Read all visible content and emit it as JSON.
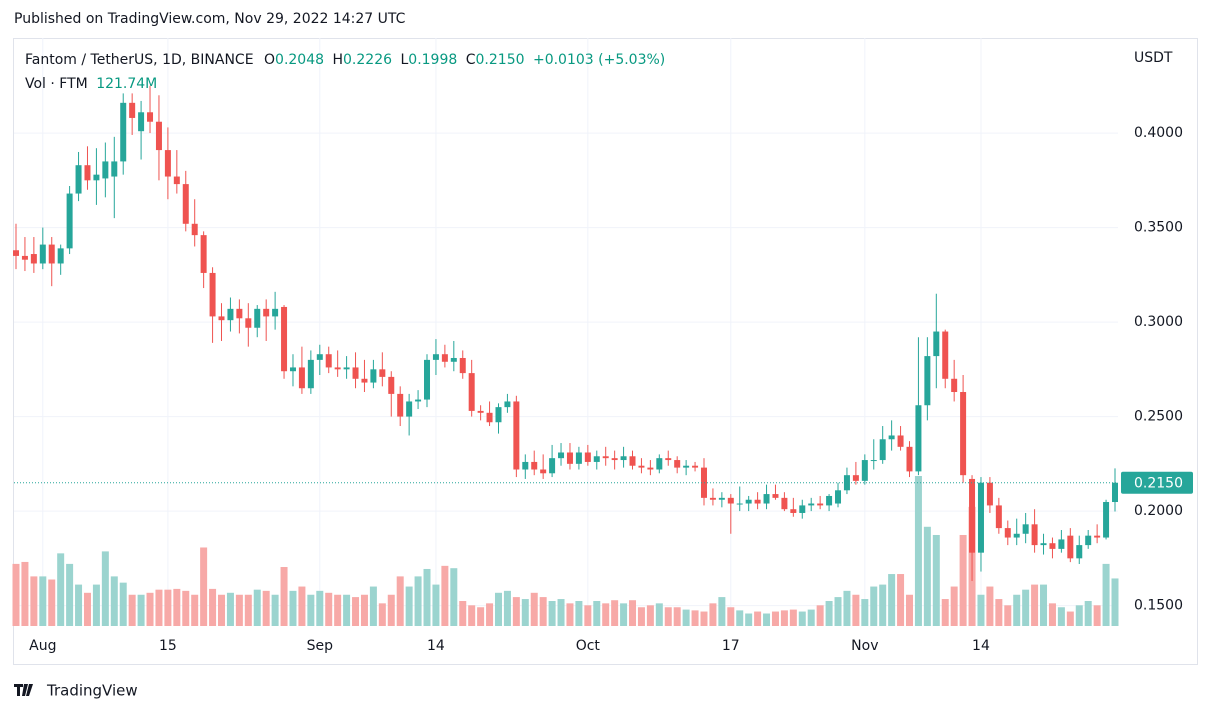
{
  "header": {
    "published": "Published on TradingView.com, Nov 29, 2022 14:27 UTC",
    "symbol": "Fantom / TetherUS, 1D, BINANCE",
    "o_label": "O",
    "o": "0.2048",
    "h_label": "H",
    "h": "0.2226",
    "l_label": "L",
    "l": "0.1998",
    "c_label": "C",
    "c": "0.2150",
    "change": "+0.0103 (+5.03%)",
    "volume_label": "Vol · FTM",
    "volume": "121.74M",
    "currency": "USDT",
    "brand": "TradingView"
  },
  "chart_data": {
    "type": "candlestick",
    "categories": [
      null,
      null,
      null,
      "Aug",
      null,
      null,
      null,
      null,
      null,
      null,
      null,
      null,
      null,
      null,
      null,
      null,
      null,
      "15",
      null,
      null,
      null,
      null,
      null,
      null,
      null,
      null,
      null,
      null,
      null,
      null,
      null,
      null,
      null,
      null,
      "Sep",
      null,
      null,
      null,
      null,
      null,
      null,
      null,
      null,
      null,
      null,
      null,
      null,
      "14",
      null,
      null,
      null,
      null,
      null,
      null,
      null,
      null,
      null,
      null,
      null,
      null,
      null,
      null,
      null,
      null,
      "Oct",
      null,
      null,
      null,
      null,
      null,
      null,
      null,
      null,
      null,
      null,
      null,
      null,
      null,
      null,
      null,
      "17",
      null,
      null,
      null,
      null,
      null,
      null,
      null,
      null,
      null,
      null,
      null,
      null,
      null,
      null,
      "Nov",
      null,
      null,
      null,
      null,
      null,
      null,
      null,
      null,
      null,
      null,
      null,
      null,
      "14",
      null,
      null,
      null,
      null,
      null,
      null,
      null,
      null,
      null,
      null,
      null,
      null,
      null,
      null,
      null
    ],
    "open": [
      0.338,
      0.335,
      0.336,
      0.331,
      0.341,
      0.331,
      0.339,
      0.368,
      0.383,
      0.375,
      0.376,
      0.377,
      0.385,
      0.416,
      0.401,
      0.411,
      0.406,
      0.391,
      0.377,
      0.373,
      0.352,
      0.346,
      0.326,
      0.303,
      0.301,
      0.307,
      0.302,
      0.297,
      0.307,
      0.303,
      0.308,
      0.274,
      0.276,
      0.265,
      0.28,
      0.283,
      0.276,
      0.275,
      0.276,
      0.27,
      0.268,
      0.275,
      0.271,
      0.262,
      0.25,
      0.258,
      0.259,
      0.28,
      0.283,
      0.279,
      0.281,
      0.273,
      0.253,
      0.252,
      0.247,
      0.255,
      0.258,
      0.222,
      0.226,
      0.222,
      0.22,
      0.228,
      0.231,
      0.225,
      0.231,
      0.226,
      0.229,
      0.228,
      0.227,
      0.229,
      0.224,
      0.223,
      0.222,
      0.228,
      0.227,
      0.223,
      0.224,
      0.223,
      0.207,
      0.206,
      0.207,
      0.204,
      0.204,
      0.206,
      0.204,
      0.209,
      0.207,
      0.201,
      0.199,
      0.203,
      0.204,
      0.203,
      0.204,
      0.211,
      0.219,
      0.216,
      0.227,
      0.227,
      0.238,
      0.24,
      0.234,
      0.221,
      0.256,
      0.282,
      0.295,
      0.27,
      0.263,
      0.217,
      0.178,
      0.215,
      0.203,
      0.191,
      0.186,
      0.188,
      0.193,
      0.182,
      0.183,
      0.18,
      0.187,
      0.175,
      0.182,
      0.187,
      0.186,
      0.2048
    ],
    "high": [
      0.352,
      0.345,
      0.345,
      0.35,
      0.345,
      0.341,
      0.372,
      0.39,
      0.393,
      0.392,
      0.395,
      0.398,
      0.421,
      0.421,
      0.417,
      0.425,
      0.42,
      0.403,
      0.391,
      0.38,
      0.365,
      0.348,
      0.329,
      0.31,
      0.313,
      0.312,
      0.31,
      0.309,
      0.312,
      0.316,
      0.309,
      0.283,
      0.287,
      0.285,
      0.288,
      0.287,
      0.285,
      0.282,
      0.284,
      0.28,
      0.28,
      0.284,
      0.274,
      0.266,
      0.262,
      0.264,
      0.283,
      0.291,
      0.288,
      0.29,
      0.285,
      0.28,
      0.256,
      0.258,
      0.257,
      0.262,
      0.261,
      0.23,
      0.232,
      0.23,
      0.235,
      0.236,
      0.236,
      0.234,
      0.235,
      0.232,
      0.234,
      0.232,
      0.234,
      0.232,
      0.228,
      0.227,
      0.23,
      0.232,
      0.229,
      0.227,
      0.226,
      0.228,
      0.212,
      0.21,
      0.209,
      0.213,
      0.208,
      0.21,
      0.214,
      0.214,
      0.21,
      0.207,
      0.206,
      0.207,
      0.208,
      0.209,
      0.215,
      0.223,
      0.226,
      0.23,
      0.238,
      0.245,
      0.248,
      0.245,
      0.237,
      0.292,
      0.292,
      0.315,
      0.296,
      0.28,
      0.272,
      0.219,
      0.218,
      0.218,
      0.207,
      0.195,
      0.196,
      0.199,
      0.201,
      0.188,
      0.186,
      0.19,
      0.191,
      0.187,
      0.19,
      0.193,
      0.206,
      0.2226
    ],
    "low": [
      0.328,
      0.327,
      0.326,
      0.328,
      0.319,
      0.325,
      0.336,
      0.364,
      0.37,
      0.362,
      0.366,
      0.355,
      0.378,
      0.399,
      0.386,
      0.4,
      0.375,
      0.365,
      0.368,
      0.348,
      0.34,
      0.318,
      0.289,
      0.29,
      0.295,
      0.294,
      0.287,
      0.292,
      0.29,
      0.296,
      0.27,
      0.266,
      0.262,
      0.262,
      0.272,
      0.273,
      0.271,
      0.27,
      0.265,
      0.263,
      0.265,
      0.266,
      0.25,
      0.245,
      0.24,
      0.254,
      0.255,
      0.272,
      0.276,
      0.274,
      0.27,
      0.25,
      0.248,
      0.245,
      0.241,
      0.252,
      0.218,
      0.217,
      0.219,
      0.217,
      0.218,
      0.224,
      0.222,
      0.222,
      0.224,
      0.222,
      0.224,
      0.222,
      0.223,
      0.222,
      0.22,
      0.219,
      0.22,
      0.224,
      0.22,
      0.219,
      0.221,
      0.203,
      0.203,
      0.202,
      0.188,
      0.2,
      0.2,
      0.201,
      0.201,
      0.206,
      0.2,
      0.197,
      0.196,
      0.2,
      0.201,
      0.2,
      0.202,
      0.209,
      0.214,
      0.214,
      0.222,
      0.225,
      0.232,
      0.232,
      0.218,
      0.219,
      0.248,
      0.265,
      0.265,
      0.258,
      0.215,
      0.163,
      0.168,
      0.199,
      0.188,
      0.182,
      0.182,
      0.183,
      0.178,
      0.177,
      0.175,
      0.178,
      0.173,
      0.172,
      0.18,
      0.183,
      0.185,
      0.1998
    ],
    "close": [
      0.335,
      0.333,
      0.331,
      0.341,
      0.331,
      0.339,
      0.368,
      0.383,
      0.375,
      0.378,
      0.385,
      0.385,
      0.416,
      0.408,
      0.411,
      0.406,
      0.391,
      0.377,
      0.373,
      0.352,
      0.346,
      0.326,
      0.303,
      0.301,
      0.307,
      0.302,
      0.297,
      0.307,
      0.303,
      0.307,
      0.274,
      0.276,
      0.265,
      0.28,
      0.283,
      0.276,
      0.275,
      0.276,
      0.27,
      0.268,
      0.275,
      0.271,
      0.262,
      0.25,
      0.258,
      0.259,
      0.28,
      0.283,
      0.279,
      0.281,
      0.273,
      0.253,
      0.252,
      0.247,
      0.255,
      0.258,
      0.222,
      0.226,
      0.222,
      0.22,
      0.228,
      0.231,
      0.225,
      0.231,
      0.226,
      0.229,
      0.228,
      0.227,
      0.229,
      0.224,
      0.223,
      0.222,
      0.228,
      0.227,
      0.223,
      0.224,
      0.223,
      0.207,
      0.206,
      0.207,
      0.204,
      0.204,
      0.206,
      0.204,
      0.209,
      0.207,
      0.201,
      0.199,
      0.203,
      0.204,
      0.203,
      0.208,
      0.211,
      0.219,
      0.216,
      0.227,
      0.227,
      0.238,
      0.24,
      0.234,
      0.221,
      0.256,
      0.282,
      0.295,
      0.27,
      0.263,
      0.219,
      0.178,
      0.215,
      0.203,
      0.191,
      0.186,
      0.188,
      0.193,
      0.182,
      0.183,
      0.18,
      0.185,
      0.175,
      0.182,
      0.187,
      0.186,
      0.2048,
      0.215
    ],
    "volume": [
      159,
      164,
      127,
      127,
      119,
      186,
      159,
      106,
      85,
      106,
      191,
      127,
      111,
      80,
      80,
      85,
      93,
      93,
      95,
      90,
      80,
      201,
      95,
      80,
      85,
      80,
      80,
      93,
      90,
      80,
      151,
      90,
      101,
      80,
      90,
      85,
      80,
      80,
      74,
      80,
      101,
      58,
      80,
      127,
      101,
      127,
      146,
      106,
      154,
      148,
      64,
      53,
      48,
      58,
      85,
      90,
      74,
      69,
      85,
      74,
      64,
      69,
      58,
      64,
      53,
      64,
      58,
      66,
      58,
      66,
      48,
      53,
      58,
      48,
      48,
      42,
      40,
      37,
      58,
      74,
      48,
      40,
      32,
      37,
      32,
      37,
      40,
      42,
      37,
      42,
      53,
      64,
      74,
      90,
      80,
      69,
      101,
      106,
      133,
      133,
      80,
      384,
      254,
      233,
      69,
      101,
      233,
      305,
      80,
      101,
      69,
      53,
      80,
      93,
      106,
      106,
      58,
      48,
      37,
      53,
      64,
      53,
      159,
      121.74
    ],
    "up_color": "#26a69a",
    "down_color": "#ef5350",
    "volume_up_color": "#9bd4cf",
    "volume_down_color": "#f7a9a7",
    "ylim": [
      0.1392,
      0.4503
    ],
    "yticks": [
      {
        "value": 0.15,
        "label": "0.1500"
      },
      {
        "value": 0.2,
        "label": "0.2000"
      },
      {
        "value": 0.25,
        "label": "0.2500"
      },
      {
        "value": 0.3,
        "label": "0.3000"
      },
      {
        "value": 0.35,
        "label": "0.3500"
      },
      {
        "value": 0.4,
        "label": "0.4000"
      }
    ],
    "last_price": {
      "value": 0.215,
      "label": "0.2150"
    },
    "grid": true
  }
}
